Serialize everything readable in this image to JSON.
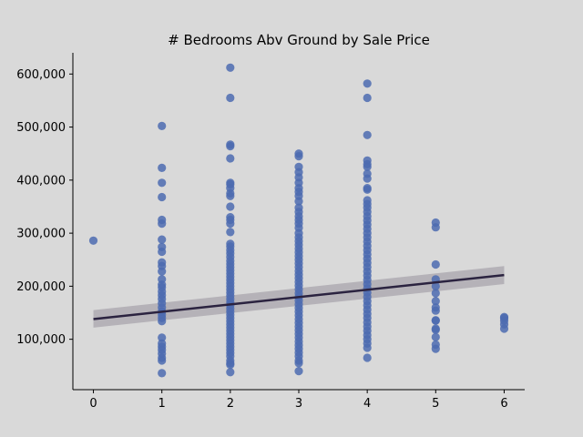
{
  "chart_data": {
    "type": "scatter",
    "title": "# Bedrooms Abv Ground by Sale Price",
    "xlabel": "",
    "ylabel": "",
    "xlim": [
      -0.3,
      6.3
    ],
    "ylim": [
      5000,
      640000
    ],
    "x_ticks": [
      0,
      1,
      2,
      3,
      4,
      5,
      6
    ],
    "x_tick_labels": [
      "0",
      "1",
      "2",
      "3",
      "4",
      "5",
      "6"
    ],
    "y_ticks": [
      100000,
      200000,
      300000,
      400000,
      500000,
      600000
    ],
    "y_tick_labels": [
      "100,000",
      "200,000",
      "300,000",
      "400,000",
      "500,000",
      "600,000"
    ],
    "grid": false,
    "point_color": "#4c6bb0",
    "line_color": "#2b2340",
    "band_color": "#a8a4ac",
    "points": [
      [
        0,
        286000
      ],
      [
        1,
        502000
      ],
      [
        1,
        423000
      ],
      [
        1,
        395000
      ],
      [
        1,
        368000
      ],
      [
        1,
        325000
      ],
      [
        1,
        318000
      ],
      [
        1,
        288000
      ],
      [
        1,
        274000
      ],
      [
        1,
        265000
      ],
      [
        1,
        245000
      ],
      [
        1,
        238000
      ],
      [
        1,
        228000
      ],
      [
        1,
        213000
      ],
      [
        1,
        203000
      ],
      [
        1,
        198000
      ],
      [
        1,
        190000
      ],
      [
        1,
        183000
      ],
      [
        1,
        176000
      ],
      [
        1,
        168000
      ],
      [
        1,
        160000
      ],
      [
        1,
        152000
      ],
      [
        1,
        146000
      ],
      [
        1,
        140000
      ],
      [
        1,
        134000
      ],
      [
        1,
        103000
      ],
      [
        1,
        92000
      ],
      [
        1,
        86000
      ],
      [
        1,
        80000
      ],
      [
        1,
        73000
      ],
      [
        1,
        65000
      ],
      [
        1,
        60000
      ],
      [
        1,
        36000
      ],
      [
        2,
        612000
      ],
      [
        2,
        555000
      ],
      [
        2,
        467000
      ],
      [
        2,
        464000
      ],
      [
        2,
        441000
      ],
      [
        2,
        395000
      ],
      [
        2,
        392000
      ],
      [
        2,
        385000
      ],
      [
        2,
        375000
      ],
      [
        2,
        370000
      ],
      [
        2,
        350000
      ],
      [
        2,
        330000
      ],
      [
        2,
        325000
      ],
      [
        2,
        318000
      ],
      [
        2,
        302000
      ],
      [
        2,
        280000
      ],
      [
        2,
        275000
      ],
      [
        2,
        268000
      ],
      [
        2,
        262000
      ],
      [
        2,
        255000
      ],
      [
        2,
        248000
      ],
      [
        2,
        242000
      ],
      [
        2,
        236000
      ],
      [
        2,
        230000
      ],
      [
        2,
        224000
      ],
      [
        2,
        218000
      ],
      [
        2,
        212000
      ],
      [
        2,
        206000
      ],
      [
        2,
        200000
      ],
      [
        2,
        194000
      ],
      [
        2,
        188000
      ],
      [
        2,
        182000
      ],
      [
        2,
        176000
      ],
      [
        2,
        170000
      ],
      [
        2,
        164000
      ],
      [
        2,
        158000
      ],
      [
        2,
        152000
      ],
      [
        2,
        146000
      ],
      [
        2,
        140000
      ],
      [
        2,
        134000
      ],
      [
        2,
        128000
      ],
      [
        2,
        122000
      ],
      [
        2,
        116000
      ],
      [
        2,
        110000
      ],
      [
        2,
        104000
      ],
      [
        2,
        98000
      ],
      [
        2,
        92000
      ],
      [
        2,
        86000
      ],
      [
        2,
        80000
      ],
      [
        2,
        74000
      ],
      [
        2,
        68000
      ],
      [
        2,
        60000
      ],
      [
        2,
        55000
      ],
      [
        2,
        52000
      ],
      [
        2,
        38000
      ],
      [
        3,
        450000
      ],
      [
        3,
        445000
      ],
      [
        3,
        425000
      ],
      [
        3,
        415000
      ],
      [
        3,
        405000
      ],
      [
        3,
        395000
      ],
      [
        3,
        385000
      ],
      [
        3,
        378000
      ],
      [
        3,
        370000
      ],
      [
        3,
        360000
      ],
      [
        3,
        348000
      ],
      [
        3,
        340000
      ],
      [
        3,
        332000
      ],
      [
        3,
        325000
      ],
      [
        3,
        318000
      ],
      [
        3,
        310000
      ],
      [
        3,
        300000
      ],
      [
        3,
        292000
      ],
      [
        3,
        285000
      ],
      [
        3,
        278000
      ],
      [
        3,
        271000
      ],
      [
        3,
        264000
      ],
      [
        3,
        257000
      ],
      [
        3,
        250000
      ],
      [
        3,
        243000
      ],
      [
        3,
        236000
      ],
      [
        3,
        229000
      ],
      [
        3,
        222000
      ],
      [
        3,
        215000
      ],
      [
        3,
        208000
      ],
      [
        3,
        201000
      ],
      [
        3,
        194000
      ],
      [
        3,
        187000
      ],
      [
        3,
        180000
      ],
      [
        3,
        173000
      ],
      [
        3,
        166000
      ],
      [
        3,
        159000
      ],
      [
        3,
        152000
      ],
      [
        3,
        145000
      ],
      [
        3,
        138000
      ],
      [
        3,
        131000
      ],
      [
        3,
        124000
      ],
      [
        3,
        117000
      ],
      [
        3,
        110000
      ],
      [
        3,
        103000
      ],
      [
        3,
        96000
      ],
      [
        3,
        89000
      ],
      [
        3,
        82000
      ],
      [
        3,
        75000
      ],
      [
        3,
        68000
      ],
      [
        3,
        60000
      ],
      [
        3,
        55000
      ],
      [
        3,
        40000
      ],
      [
        4,
        582000
      ],
      [
        4,
        555000
      ],
      [
        4,
        485000
      ],
      [
        4,
        437000
      ],
      [
        4,
        430000
      ],
      [
        4,
        425000
      ],
      [
        4,
        412000
      ],
      [
        4,
        403000
      ],
      [
        4,
        385000
      ],
      [
        4,
        382000
      ],
      [
        4,
        362000
      ],
      [
        4,
        355000
      ],
      [
        4,
        348000
      ],
      [
        4,
        340000
      ],
      [
        4,
        332000
      ],
      [
        4,
        324000
      ],
      [
        4,
        316000
      ],
      [
        4,
        308000
      ],
      [
        4,
        300000
      ],
      [
        4,
        292000
      ],
      [
        4,
        284000
      ],
      [
        4,
        276000
      ],
      [
        4,
        268000
      ],
      [
        4,
        260000
      ],
      [
        4,
        252000
      ],
      [
        4,
        244000
      ],
      [
        4,
        236000
      ],
      [
        4,
        228000
      ],
      [
        4,
        220000
      ],
      [
        4,
        212000
      ],
      [
        4,
        204000
      ],
      [
        4,
        196000
      ],
      [
        4,
        188000
      ],
      [
        4,
        180000
      ],
      [
        4,
        172000
      ],
      [
        4,
        164000
      ],
      [
        4,
        156000
      ],
      [
        4,
        148000
      ],
      [
        4,
        140000
      ],
      [
        4,
        132000
      ],
      [
        4,
        124000
      ],
      [
        4,
        116000
      ],
      [
        4,
        108000
      ],
      [
        4,
        100000
      ],
      [
        4,
        92000
      ],
      [
        4,
        84000
      ],
      [
        4,
        65000
      ],
      [
        5,
        320000
      ],
      [
        5,
        311000
      ],
      [
        5,
        241000
      ],
      [
        5,
        213000
      ],
      [
        5,
        200000
      ],
      [
        5,
        187000
      ],
      [
        5,
        172000
      ],
      [
        5,
        160000
      ],
      [
        5,
        154000
      ],
      [
        5,
        136000
      ],
      [
        5,
        135000
      ],
      [
        5,
        120000
      ],
      [
        5,
        118000
      ],
      [
        5,
        104000
      ],
      [
        5,
        90000
      ],
      [
        5,
        82000
      ],
      [
        6,
        142000
      ],
      [
        6,
        140000
      ],
      [
        6,
        135000
      ],
      [
        6,
        128000
      ],
      [
        6,
        120000
      ]
    ],
    "regression": {
      "x": [
        0,
        6
      ],
      "y": [
        138000,
        221000
      ]
    },
    "ci_band": {
      "x": [
        0,
        6
      ],
      "lower": [
        122000,
        204000
      ],
      "upper": [
        155000,
        238000
      ]
    }
  }
}
